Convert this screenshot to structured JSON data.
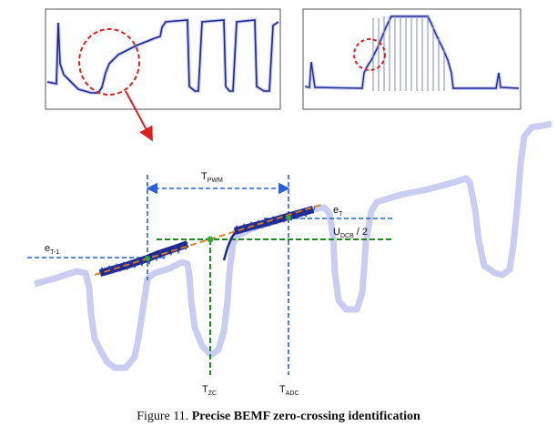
{
  "labels": {
    "t_pwm": {
      "main": "T",
      "sub": "PWM"
    },
    "e_t": {
      "main": "e",
      "sub": "T"
    },
    "e_t1": {
      "main": "e",
      "sub": "T-1"
    },
    "u_dcb": {
      "main": "U",
      "sub": "DCB",
      "suffix": " / 2"
    },
    "t_zc": {
      "main": "T",
      "sub": "ZC"
    },
    "t_adc": {
      "main": "T",
      "sub": "ADC"
    }
  },
  "caption": {
    "prefix": "Figure 11.",
    "title": "Precise BEMF zero-crossing identification"
  },
  "colors": {
    "guide_blue": "#2a5fd6",
    "guide_green": "#1e8a1e",
    "fit_orange": "#e07a1a",
    "callout_red": "#e02020",
    "trace_light": "#c9cdf2",
    "trace_dark": "#1c2a8f"
  }
}
